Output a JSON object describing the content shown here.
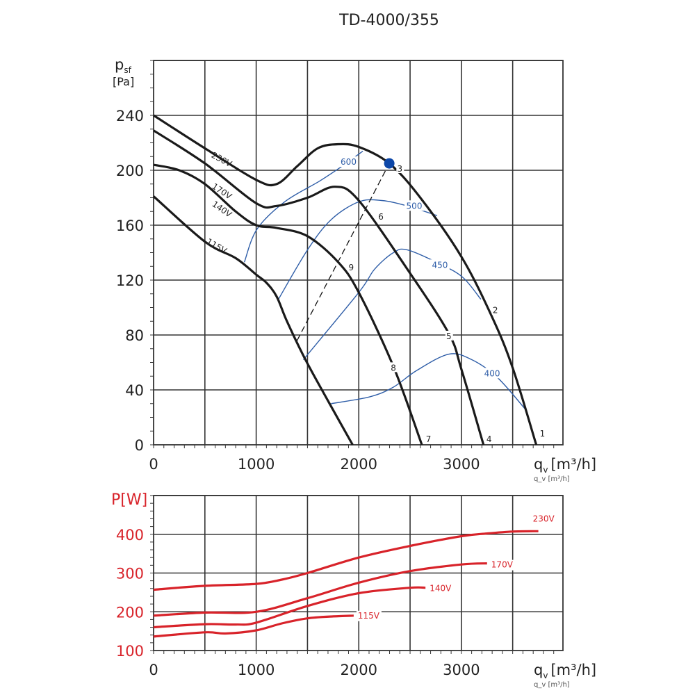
{
  "title": "TD-4000/355",
  "colors": {
    "fan_curve": "#1a1a1a",
    "efficiency": "#2f5ea8",
    "power": "#d8232a",
    "operating_point": "#0d47a8",
    "grid": "#333333"
  },
  "chart_data": [
    {
      "type": "line",
      "title": "TD-4000/355",
      "xlabel": "q_v [m³/h]",
      "xlabel_main": "q",
      "xlabel_sub": "v",
      "xlabel_unit": "[m³/h]",
      "ylabel_main": "p",
      "ylabel_sub": "sf",
      "ylabel_unit": "[Pa]",
      "xlim": [
        0,
        3990
      ],
      "ylim": [
        0,
        280
      ],
      "xticks": [
        0,
        1000,
        2000,
        3000
      ],
      "yticks": [
        0,
        40,
        80,
        120,
        160,
        200,
        240
      ],
      "grid": true,
      "series": [
        {
          "name": "230V",
          "points": [
            [
              0,
              240
            ],
            [
              500,
              216
            ],
            [
              1000,
              193
            ],
            [
              1200,
              190
            ],
            [
              1400,
              203
            ],
            [
              1600,
              216
            ],
            [
              1800,
              219
            ],
            [
              2000,
              217
            ],
            [
              2297,
              205
            ],
            [
              2600,
              180
            ],
            [
              3000,
              137
            ],
            [
              3300,
              93
            ],
            [
              3500,
              56
            ],
            [
              3730,
              0
            ]
          ]
        },
        {
          "name": "170V",
          "points": [
            [
              0,
              229
            ],
            [
              500,
              205
            ],
            [
              1000,
              176
            ],
            [
              1200,
              174
            ],
            [
              1500,
              180
            ],
            [
              1770,
              188
            ],
            [
              2000,
              178
            ],
            [
              2500,
              125
            ],
            [
              2878,
              81
            ],
            [
              3000,
              55
            ],
            [
              3216,
              0
            ]
          ]
        },
        {
          "name": "140V",
          "points": [
            [
              0,
              204
            ],
            [
              250,
              200
            ],
            [
              500,
              190
            ],
            [
              800,
              170
            ],
            [
              1000,
              160
            ],
            [
              1200,
              158
            ],
            [
              1500,
              152
            ],
            [
              1800,
              133
            ],
            [
              2000,
              111
            ],
            [
              2338,
              57
            ],
            [
              2615,
              0
            ]
          ]
        },
        {
          "name": "115V",
          "points": [
            [
              0,
              181
            ],
            [
              500,
              148
            ],
            [
              800,
              136
            ],
            [
              1000,
              124
            ],
            [
              1100,
              118
            ],
            [
              1200,
              108
            ],
            [
              1300,
              90
            ],
            [
              1480,
              62
            ],
            [
              1700,
              32
            ],
            [
              1940,
              0
            ]
          ]
        }
      ],
      "efficiency_lines": [
        {
          "name": "600",
          "points": [
            [
              885,
              133
            ],
            [
              1007,
              157
            ],
            [
              1277,
              177
            ],
            [
              1615,
              192
            ],
            [
              1838,
              203
            ],
            [
              2040,
              214
            ]
          ],
          "label_at": [
            1900,
            206
          ]
        },
        {
          "name": "500",
          "points": [
            [
              1209,
              105
            ],
            [
              1500,
              142
            ],
            [
              1730,
              164
            ],
            [
              2000,
              177
            ],
            [
              2223,
              178
            ],
            [
              2473,
              174
            ],
            [
              2764,
              167
            ]
          ],
          "label_at": [
            2540,
            174
          ]
        },
        {
          "name": "450",
          "points": [
            [
              1460,
              62
            ],
            [
              2000,
              111
            ],
            [
              2155,
              128
            ],
            [
              2338,
              140
            ],
            [
              2473,
              142
            ],
            [
              2784,
              132
            ],
            [
              3013,
              122
            ],
            [
              3189,
              106
            ]
          ],
          "label_at": [
            2790,
            131
          ]
        },
        {
          "name": "400",
          "points": [
            [
              1730,
              30
            ],
            [
              2108,
              35
            ],
            [
              2338,
              42
            ],
            [
              2561,
              54
            ],
            [
              2878,
              66
            ],
            [
              3101,
              62
            ],
            [
              3351,
              49
            ],
            [
              3622,
              26
            ]
          ],
          "label_at": [
            3300,
            52
          ]
        }
      ],
      "system_line": {
        "name": "9",
        "points": [
          [
            1399,
            76
          ],
          [
            2297,
            205
          ]
        ]
      },
      "operating_point": {
        "name": "3",
        "x": 2297,
        "y": 205
      },
      "point_labels": [
        {
          "text": "1",
          "x": 3790,
          "y": 7
        },
        {
          "text": "2",
          "x": 3331,
          "y": 97
        },
        {
          "text": "3",
          "x": 2400,
          "y": 200
        },
        {
          "text": "4",
          "x": 3270,
          "y": 3
        },
        {
          "text": "5",
          "x": 2878,
          "y": 78
        },
        {
          "text": "6",
          "x": 2216,
          "y": 165
        },
        {
          "text": "7",
          "x": 2680,
          "y": 3
        },
        {
          "text": "8",
          "x": 2338,
          "y": 55
        },
        {
          "text": "9",
          "x": 1926,
          "y": 128
        }
      ],
      "curve_labels": [
        {
          "text": "230V",
          "x": 650,
          "y": 206,
          "angle": 28
        },
        {
          "text": "170V",
          "x": 650,
          "y": 183,
          "angle": 33
        },
        {
          "text": "140V",
          "x": 650,
          "y": 170,
          "angle": 35
        },
        {
          "text": "115V",
          "x": 600,
          "y": 143,
          "angle": 30
        }
      ]
    },
    {
      "type": "line",
      "ylabel": "P[W]",
      "xlabel": "q_v [m³/h]",
      "xlabel_main": "q",
      "xlabel_sub": "v",
      "xlabel_unit": "[m³/h]",
      "xlim": [
        0,
        3990
      ],
      "ylim": [
        100,
        500
      ],
      "xticks": [
        0,
        1000,
        2000,
        3000
      ],
      "yticks": [
        100,
        200,
        300,
        400
      ],
      "grid": true,
      "series": [
        {
          "name": "230V",
          "points": [
            [
              0,
              257
            ],
            [
              500,
              267
            ],
            [
              1000,
              272
            ],
            [
              1250,
              283
            ],
            [
              1500,
              300
            ],
            [
              2000,
              340
            ],
            [
              2500,
              370
            ],
            [
              3000,
              395
            ],
            [
              3250,
              402
            ],
            [
              3500,
              407
            ],
            [
              3750,
              408
            ]
          ]
        },
        {
          "name": "170V",
          "points": [
            [
              0,
              190
            ],
            [
              500,
              198
            ],
            [
              1000,
              200
            ],
            [
              1500,
              235
            ],
            [
              2000,
              275
            ],
            [
              2500,
              305
            ],
            [
              3000,
              322
            ],
            [
              3250,
              325
            ]
          ]
        },
        {
          "name": "140V",
          "points": [
            [
              0,
              160
            ],
            [
              500,
              168
            ],
            [
              800,
              167
            ],
            [
              1000,
              172
            ],
            [
              1500,
              215
            ],
            [
              2000,
              248
            ],
            [
              2500,
              262
            ],
            [
              2650,
              262
            ]
          ]
        },
        {
          "name": "115V",
          "points": [
            [
              0,
              136
            ],
            [
              500,
              147
            ],
            [
              700,
              144
            ],
            [
              1000,
              152
            ],
            [
              1250,
              170
            ],
            [
              1500,
              183
            ],
            [
              1750,
              188
            ],
            [
              1950,
              190
            ]
          ]
        }
      ]
    }
  ]
}
